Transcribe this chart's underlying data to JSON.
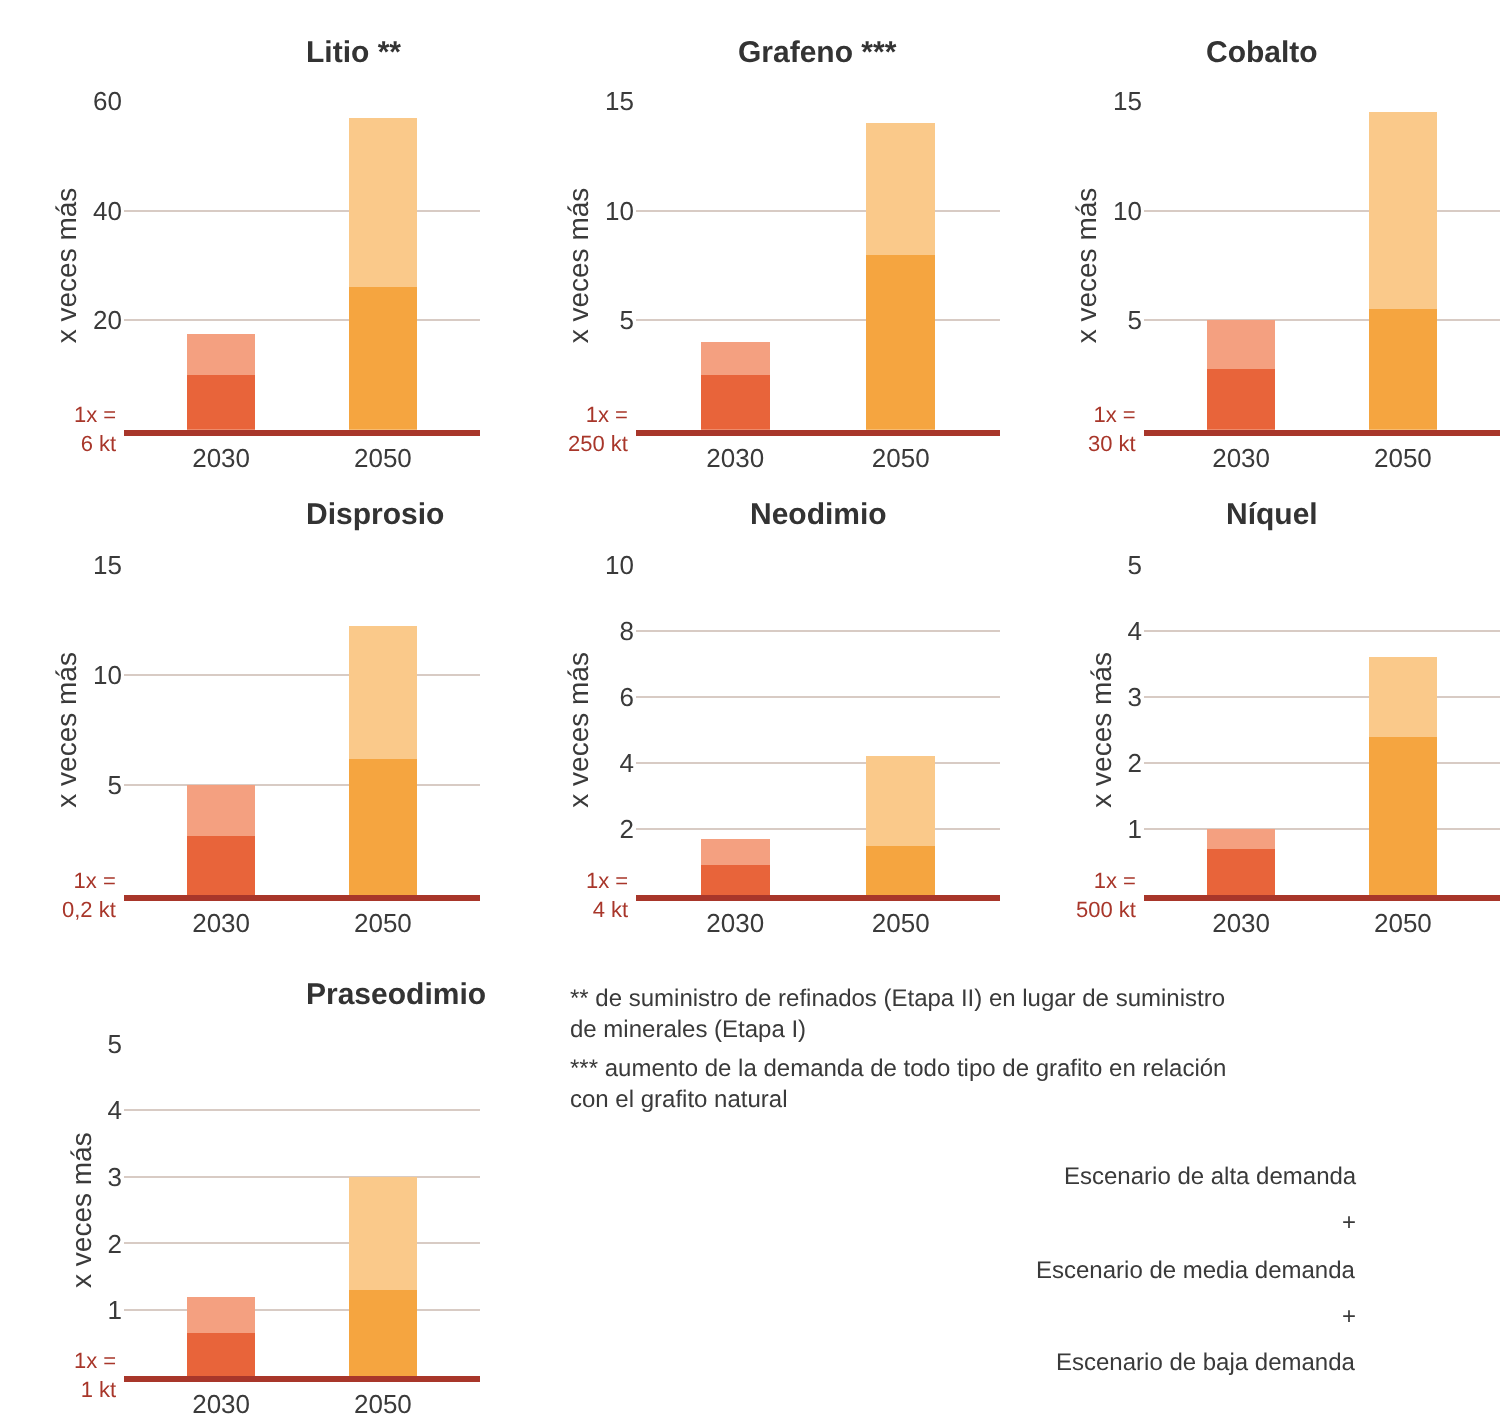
{
  "chart_data": [
    {
      "type": "bar",
      "title": "Litio **",
      "ylabel": "x veces más",
      "categories": [
        "2030",
        "2050"
      ],
      "stacked": true,
      "ylim": [
        0,
        60
      ],
      "yticks": [
        20,
        40,
        60
      ],
      "grid": "y",
      "annotations": [
        "1x =\n6 kt"
      ],
      "series": [
        {
          "colors": [
            "#e8643a",
            "#f5a540"
          ],
          "values": [
            10,
            26
          ]
        },
        {
          "colors": [
            "#f4a080",
            "#fac98a"
          ],
          "values": [
            7.5,
            31
          ]
        }
      ]
    },
    {
      "type": "bar",
      "title": "Grafeno ***",
      "ylabel": "x veces más",
      "categories": [
        "2030",
        "2050"
      ],
      "stacked": true,
      "ylim": [
        0,
        15
      ],
      "yticks": [
        5,
        10,
        15
      ],
      "grid": "y",
      "annotations": [
        "1x =\n250 kt"
      ],
      "series": [
        {
          "colors": [
            "#e8643a",
            "#f5a540"
          ],
          "values": [
            2.5,
            8
          ]
        },
        {
          "colors": [
            "#f4a080",
            "#fac98a"
          ],
          "values": [
            1.5,
            6
          ]
        }
      ]
    },
    {
      "type": "bar",
      "title": "Cobalto",
      "ylabel": "x veces más",
      "categories": [
        "2030",
        "2050"
      ],
      "stacked": true,
      "ylim": [
        0,
        15
      ],
      "yticks": [
        5,
        10,
        15
      ],
      "grid": "y",
      "annotations": [
        "1x =\n30 kt"
      ],
      "series": [
        {
          "colors": [
            "#e8643a",
            "#f5a540"
          ],
          "values": [
            2.8,
            5.5
          ]
        },
        {
          "colors": [
            "#f4a080",
            "#fac98a"
          ],
          "values": [
            2.2,
            9
          ]
        }
      ]
    },
    {
      "type": "bar",
      "title": "Disprosio",
      "ylabel": "x veces más",
      "categories": [
        "2030",
        "2050"
      ],
      "stacked": true,
      "ylim": [
        0,
        15
      ],
      "yticks": [
        5,
        10,
        15
      ],
      "grid": "y",
      "annotations": [
        "1x =\n0,2 kt"
      ],
      "series": [
        {
          "colors": [
            "#e8643a",
            "#f5a540"
          ],
          "values": [
            2.7,
            6.2
          ]
        },
        {
          "colors": [
            "#f4a080",
            "#fac98a"
          ],
          "values": [
            2.3,
            6
          ]
        }
      ]
    },
    {
      "type": "bar",
      "title": "Neodimio",
      "ylabel": "x veces más",
      "categories": [
        "2030",
        "2050"
      ],
      "stacked": true,
      "ylim": [
        0,
        10
      ],
      "yticks": [
        2,
        4,
        6,
        8,
        10
      ],
      "grid": "y",
      "annotations": [
        "1x =\n4 kt"
      ],
      "series": [
        {
          "colors": [
            "#e8643a",
            "#f5a540"
          ],
          "values": [
            0.9,
            1.5
          ]
        },
        {
          "colors": [
            "#f4a080",
            "#fac98a"
          ],
          "values": [
            0.8,
            2.7
          ]
        }
      ]
    },
    {
      "type": "bar",
      "title": "Níquel",
      "ylabel": "x veces más",
      "categories": [
        "2030",
        "2050"
      ],
      "stacked": true,
      "ylim": [
        0,
        5
      ],
      "yticks": [
        1,
        2,
        3,
        4,
        5
      ],
      "grid": "y",
      "annotations": [
        "1x =\n500 kt"
      ],
      "series": [
        {
          "colors": [
            "#e8643a",
            "#f5a540"
          ],
          "values": [
            0.7,
            2.4
          ]
        },
        {
          "colors": [
            "#f4a080",
            "#fac98a"
          ],
          "values": [
            0.3,
            1.2
          ]
        }
      ]
    },
    {
      "type": "bar",
      "title": "Praseodimio",
      "ylabel": "x veces más",
      "categories": [
        "2030",
        "2050"
      ],
      "stacked": true,
      "ylim": [
        0,
        5
      ],
      "yticks": [
        1,
        2,
        3,
        4,
        5
      ],
      "grid": "y",
      "annotations": [
        "1x =\n1 kt"
      ],
      "series": [
        {
          "colors": [
            "#e8643a",
            "#f5a540"
          ],
          "values": [
            0.65,
            1.3
          ]
        },
        {
          "colors": [
            "#f4a080",
            "#fac98a"
          ],
          "values": [
            0.55,
            1.7
          ]
        }
      ]
    },
    {
      "type": "other",
      "annotations": [
        "** de suministro de refinados (Etapa II) en lugar de suministro\nde minerales (Etapa I)",
        "*** aumento de la demanda de todo tipo de grafito en relación\ncon el grafito natural",
        "Escenario de alta demanda",
        "+",
        "Escenario de media demanda",
        "+",
        "Escenario de baja demanda"
      ]
    }
  ]
}
